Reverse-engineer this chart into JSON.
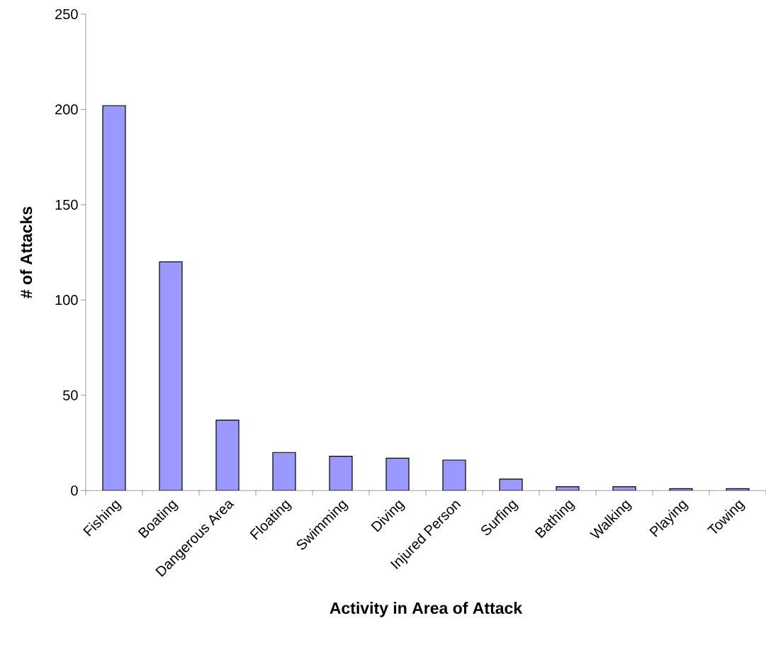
{
  "chart_data": {
    "type": "bar",
    "xlabel": "Activity in Area of Attack",
    "ylabel": "# of Attacks",
    "categories": [
      "Fishing",
      "Boating",
      "Dangerous Area",
      "Floating",
      "Swimming",
      "Diving",
      "Injured Person",
      "Surfing",
      "Bathing",
      "Walking",
      "Playing",
      "Towing"
    ],
    "values": [
      202,
      120,
      37,
      20,
      18,
      17,
      16,
      6,
      2,
      2,
      1,
      1
    ],
    "color": "#9999ff",
    "ylim": [
      0,
      250
    ],
    "yticks": [
      0,
      50,
      100,
      150,
      200,
      250
    ],
    "grid": false
  }
}
